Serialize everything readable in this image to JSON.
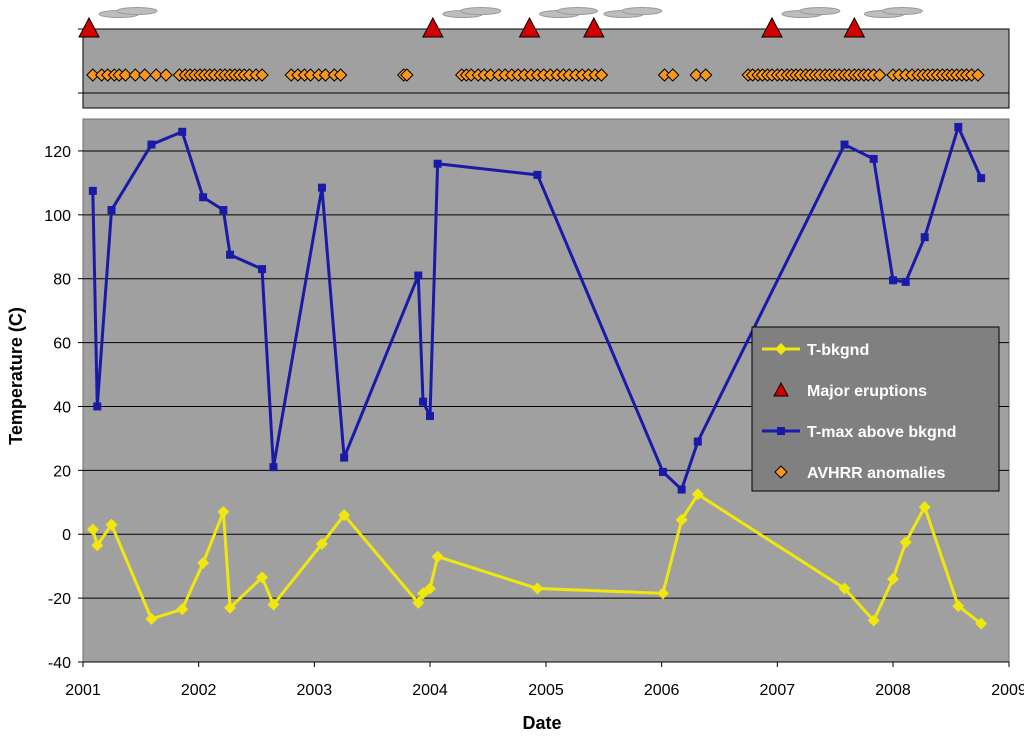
{
  "chart_data": [
    {
      "type": "scatter",
      "panel": "timeline",
      "series": [
        {
          "name": "Major eruptions",
          "marker": "triangle",
          "color": "#d40000",
          "x": [
            "2001-01-20",
            "2004-01-10",
            "2004-11-10",
            "2005-06-01",
            "2006-12-15",
            "2007-09-01"
          ]
        },
        {
          "name": "AVHRR anomalies",
          "marker": "diamond",
          "color": "#f7981d",
          "x": [
            "2001-02-01",
            "2001-03-01",
            "2001-03-20",
            "2001-04-10",
            "2001-04-25",
            "2001-05-15",
            "2001-06-15",
            "2001-07-15",
            "2001-08-20",
            "2001-09-20",
            "2001-11-01",
            "2001-11-20",
            "2001-12-05",
            "2001-12-20",
            "2002-01-05",
            "2002-01-20",
            "2002-02-05",
            "2002-02-20",
            "2002-03-10",
            "2002-03-25",
            "2002-04-10",
            "2002-04-25",
            "2002-05-10",
            "2002-05-25",
            "2002-06-10",
            "2002-07-01",
            "2002-07-20",
            "2002-10-20",
            "2002-11-10",
            "2002-12-01",
            "2002-12-20",
            "2003-01-15",
            "2003-02-05",
            "2003-03-05",
            "2003-03-25",
            "2003-10-10",
            "2003-10-20",
            "2004-04-10",
            "2004-04-25",
            "2004-05-10",
            "2004-06-01",
            "2004-06-20",
            "2004-07-10",
            "2004-08-05",
            "2004-08-25",
            "2004-09-15",
            "2004-10-05",
            "2004-10-25",
            "2004-11-15",
            "2004-12-05",
            "2004-12-25",
            "2005-01-15",
            "2005-02-05",
            "2005-02-25",
            "2005-03-15",
            "2005-04-05",
            "2005-04-25",
            "2005-05-15",
            "2005-06-05",
            "2005-06-25",
            "2006-01-10",
            "2006-02-05",
            "2006-04-20",
            "2006-05-20",
            "2006-10-01",
            "2006-10-15",
            "2006-11-01",
            "2006-11-15",
            "2006-12-01",
            "2006-12-15",
            "2007-01-01",
            "2007-01-15",
            "2007-02-01",
            "2007-02-15",
            "2007-03-01",
            "2007-03-15",
            "2007-04-01",
            "2007-04-15",
            "2007-05-01",
            "2007-05-15",
            "2007-06-01",
            "2007-06-15",
            "2007-07-01",
            "2007-07-15",
            "2007-08-01",
            "2007-08-15",
            "2007-09-01",
            "2007-09-15",
            "2007-10-01",
            "2007-10-15",
            "2007-11-01",
            "2007-11-20",
            "2008-01-01",
            "2008-01-20",
            "2008-02-10",
            "2008-03-01",
            "2008-03-20",
            "2008-04-05",
            "2008-04-20",
            "2008-05-05",
            "2008-05-20",
            "2008-06-05",
            "2008-06-20",
            "2008-07-05",
            "2008-07-20",
            "2008-08-05",
            "2008-08-20",
            "2008-09-05",
            "2008-09-25"
          ]
        }
      ]
    },
    {
      "type": "line",
      "panel": "temperature",
      "xlabel": "Date",
      "ylabel": "Temperature (C)",
      "ylim": [
        -40,
        130
      ],
      "yticks": [
        -40,
        -20,
        0,
        20,
        40,
        60,
        80,
        100,
        120
      ],
      "xlim": [
        "2001-01-01",
        "2009-01-01"
      ],
      "xticks": [
        "2001",
        "2002",
        "2003",
        "2004",
        "2005",
        "2006",
        "2007",
        "2008",
        "2009"
      ],
      "grid": true,
      "legend_position": "right",
      "legend": [
        "T-bkgnd",
        "Major eruptions",
        "T-max above bkgnd",
        "AVHRR anomalies"
      ],
      "series": [
        {
          "name": "T-max above bkgnd",
          "color": "#1a1aa8",
          "marker": "square",
          "x": [
            "2001-02-01",
            "2001-02-15",
            "2001-04-01",
            "2001-08-05",
            "2001-11-10",
            "2002-01-15",
            "2002-03-20",
            "2002-04-10",
            "2002-07-20",
            "2002-08-25",
            "2003-01-25",
            "2003-04-05",
            "2003-11-25",
            "2003-12-10",
            "2004-01-01",
            "2004-01-25",
            "2004-12-05",
            "2006-01-05",
            "2006-03-05",
            "2006-04-25",
            "2007-08-01",
            "2007-11-01",
            "2008-01-01",
            "2008-02-10",
            "2008-04-10",
            "2008-07-25",
            "2008-10-05"
          ],
          "values": [
            107.5,
            40,
            101.5,
            122,
            126,
            105.5,
            101.5,
            87.5,
            83,
            21,
            108.5,
            24,
            81,
            41.5,
            37,
            116,
            112.5,
            19.5,
            14,
            29,
            122,
            117.5,
            79.5,
            79,
            93,
            127.5,
            111.5
          ]
        },
        {
          "name": "T-bkgnd",
          "color": "#f0e70c",
          "marker": "diamond",
          "x": [
            "2001-02-01",
            "2001-02-15",
            "2001-04-01",
            "2001-08-05",
            "2001-11-10",
            "2002-01-15",
            "2002-03-20",
            "2002-04-10",
            "2002-07-20",
            "2002-08-25",
            "2003-01-25",
            "2003-04-05",
            "2003-11-25",
            "2003-12-10",
            "2004-01-01",
            "2004-01-25",
            "2004-12-05",
            "2006-01-05",
            "2006-03-05",
            "2006-04-25",
            "2007-08-01",
            "2007-11-01",
            "2008-01-01",
            "2008-02-10",
            "2008-04-10",
            "2008-07-25",
            "2008-10-05"
          ],
          "values": [
            1.5,
            -3.5,
            3,
            -26.5,
            -23.5,
            -9,
            7,
            -23,
            -13.5,
            -22,
            -3,
            6,
            -21.5,
            -18.5,
            -17,
            -7,
            -17,
            -18.5,
            4.5,
            12.5,
            -17,
            -27,
            -14,
            -2.5,
            8.5,
            -22.5,
            -28
          ]
        }
      ]
    }
  ]
}
